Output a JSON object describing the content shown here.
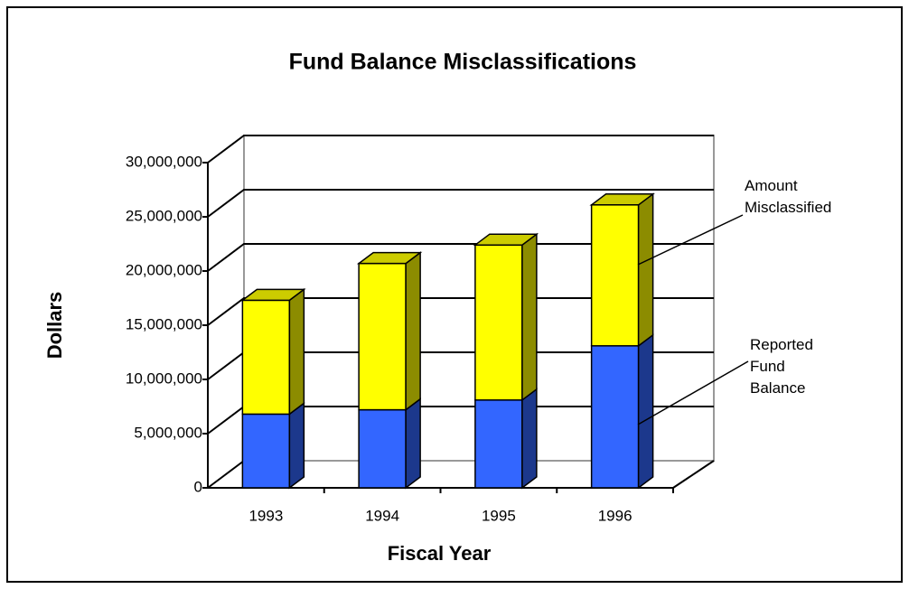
{
  "chart_data": {
    "type": "bar3d_stacked",
    "title": "Fund Balance Misclassifications",
    "xlabel": "Fiscal Year",
    "ylabel": "Dollars",
    "categories": [
      "1993",
      "1994",
      "1995",
      "1996"
    ],
    "series": [
      {
        "name": "Reported Fund Balance",
        "color": "#3366ff",
        "values": [
          6800000,
          7200000,
          8100000,
          13100000
        ]
      },
      {
        "name": "Amount Misclassified",
        "color": "#ffff00",
        "values": [
          10500000,
          13500000,
          14300000,
          13000000
        ]
      }
    ],
    "ylim": [
      0,
      30000000
    ],
    "yticks": [
      0,
      {
        "value": 5000000,
        "label": "5,000,000"
      },
      {
        "value": 10000000,
        "label": "10,000,000"
      },
      {
        "value": 15000000,
        "label": "15,000,000"
      },
      {
        "value": 20000000,
        "label": "20,000,000"
      },
      {
        "value": 25000000,
        "label": "25,000,000"
      },
      {
        "value": 30000000,
        "label": "30,000,000"
      }
    ],
    "grid": true
  }
}
